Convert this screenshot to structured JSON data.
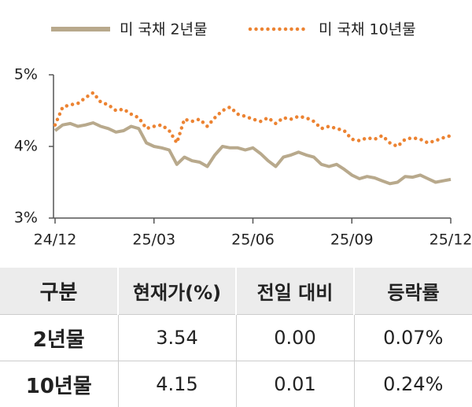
{
  "chart_data": {
    "type": "line",
    "categories": [
      "24/12",
      null,
      null,
      null,
      null,
      null,
      null,
      null,
      null,
      null,
      null,
      null,
      null,
      "25/03",
      null,
      null,
      null,
      null,
      null,
      null,
      null,
      null,
      null,
      null,
      null,
      null,
      "25/06",
      null,
      null,
      null,
      null,
      null,
      null,
      null,
      null,
      null,
      null,
      null,
      null,
      "25/09",
      null,
      null,
      null,
      null,
      null,
      null,
      null,
      null,
      null,
      null,
      null,
      null,
      "25/12"
    ],
    "series": [
      {
        "name": "미 국채 2년물",
        "color": "#b8a98c",
        "style": "solid",
        "values": [
          4.22,
          4.3,
          4.32,
          4.28,
          4.3,
          4.33,
          4.28,
          4.25,
          4.2,
          4.22,
          4.28,
          4.25,
          4.05,
          4.0,
          3.98,
          3.95,
          3.75,
          3.85,
          3.8,
          3.78,
          3.72,
          3.88,
          4.0,
          3.98,
          3.98,
          3.95,
          3.98,
          3.9,
          3.8,
          3.72,
          3.85,
          3.88,
          3.92,
          3.88,
          3.85,
          3.75,
          3.72,
          3.75,
          3.68,
          3.6,
          3.55,
          3.58,
          3.56,
          3.52,
          3.48,
          3.5,
          3.58,
          3.57,
          3.6,
          3.55,
          3.5,
          3.52,
          3.54
        ]
      },
      {
        "name": "미 국채 10년물",
        "color": "#ec8332",
        "style": "dotted",
        "values": [
          4.3,
          4.55,
          4.58,
          4.6,
          4.68,
          4.75,
          4.62,
          4.58,
          4.5,
          4.52,
          4.45,
          4.4,
          4.25,
          4.28,
          4.3,
          4.22,
          4.05,
          4.38,
          4.35,
          4.38,
          4.28,
          4.4,
          4.5,
          4.55,
          4.45,
          4.42,
          4.38,
          4.35,
          4.4,
          4.32,
          4.4,
          4.38,
          4.42,
          4.4,
          4.35,
          4.25,
          4.28,
          4.25,
          4.22,
          4.1,
          4.08,
          4.12,
          4.1,
          4.15,
          4.05,
          4.0,
          4.1,
          4.12,
          4.1,
          4.05,
          4.08,
          4.12,
          4.15
        ]
      }
    ],
    "ylim": [
      3,
      5
    ],
    "yticks": [
      {
        "value": 3,
        "label": "3%"
      },
      {
        "value": 4,
        "label": "4%"
      },
      {
        "value": 5,
        "label": "5%"
      }
    ],
    "legend": "top"
  },
  "table": {
    "header": [
      "구분",
      "현재가(%)",
      "전일 대비",
      "등락률"
    ],
    "rows": [
      [
        "2년물",
        "3.54",
        "0.00",
        "0.07%"
      ],
      [
        "10년물",
        "4.15",
        "0.01",
        "0.24%"
      ]
    ]
  }
}
